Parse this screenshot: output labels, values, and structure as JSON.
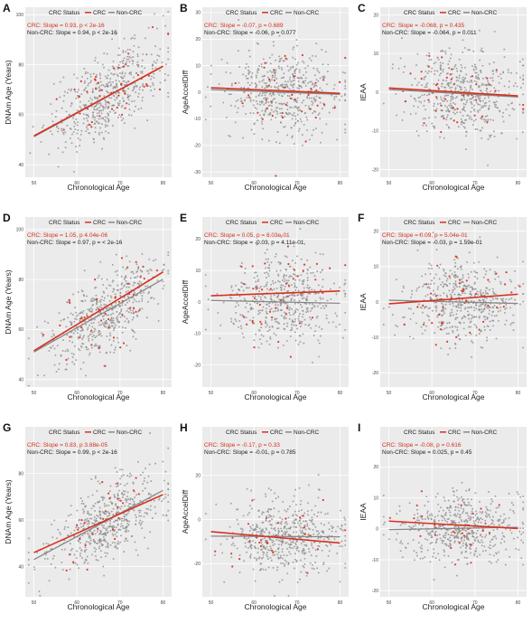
{
  "figure": {
    "colors": {
      "crc": "#d7301f",
      "noncrc": "#888888",
      "panel_bg": "#ebebeb",
      "grid": "#ffffff",
      "text": "#222222",
      "tick": "#444444"
    }
  },
  "chart_data": [
    {
      "panel": "A",
      "type": "scatter",
      "xlabel": "Chronological Age",
      "ylabel": "DNAm Age (Years)",
      "xlim": [
        48,
        82
      ],
      "ylim": [
        35,
        103
      ],
      "xticks": [
        50,
        60,
        70,
        80
      ],
      "yticks": [
        40,
        60,
        80,
        100
      ],
      "legend_title": "CRC Status",
      "legend_items": [
        "CRC",
        "Non-CRC"
      ],
      "annotations": {
        "crc": "CRC: Slope = 0.93, p < 2e-16",
        "noncrc": "Non-CRC: Slope = 0.94, p < 2e-16"
      },
      "series": [
        {
          "name": "CRC",
          "fit": {
            "slope": 0.93,
            "intercept": 5.0
          }
        },
        {
          "name": "Non-CRC",
          "fit": {
            "slope": 0.94,
            "intercept": 4.2
          }
        }
      ],
      "scatter": {
        "center_x": 67,
        "sd_x": 6.5,
        "y_at_center": 68.5,
        "slope": 0.94,
        "sd_y": 8.0,
        "n_noncrc": 520,
        "n_crc": 45
      }
    },
    {
      "panel": "B",
      "type": "scatter",
      "xlabel": "Chronological Age",
      "ylabel": "AgeAccelDiff",
      "xlim": [
        48,
        82
      ],
      "ylim": [
        -32,
        32
      ],
      "xticks": [
        50,
        60,
        70,
        80
      ],
      "yticks": [
        -30,
        -20,
        -10,
        0,
        10,
        20,
        30
      ],
      "legend_title": "CRC Status",
      "legend_items": [
        "CRC",
        "Non-CRC"
      ],
      "annotations": {
        "crc": "CRC: Slope = -0.07, p = 0.689",
        "noncrc": "Non-CRC: Slope = -0.06, p = 0.077"
      },
      "series": [
        {
          "name": "CRC",
          "fit": {
            "slope": -0.07,
            "intercept": 5.2
          }
        },
        {
          "name": "Non-CRC",
          "fit": {
            "slope": -0.06,
            "intercept": 4.0
          }
        }
      ],
      "scatter": {
        "center_x": 67,
        "sd_x": 6.5,
        "y_at_center": 0,
        "slope": -0.06,
        "sd_y": 8.0,
        "n_noncrc": 520,
        "n_crc": 45
      }
    },
    {
      "panel": "C",
      "type": "scatter",
      "xlabel": "Chronological Age",
      "ylabel": "IEAA",
      "xlim": [
        48,
        82
      ],
      "ylim": [
        -22,
        22
      ],
      "xticks": [
        50,
        60,
        70,
        80
      ],
      "yticks": [
        -20,
        -10,
        0,
        10,
        20
      ],
      "legend_title": "CRC Status",
      "legend_items": [
        "CRC",
        "Non-CRC"
      ],
      "annotations": {
        "crc": "CRC: Slope = -0.068, p = 0.435",
        "noncrc": "Non-CRC: Slope = -0.064, p = 0.011"
      },
      "series": [
        {
          "name": "CRC",
          "fit": {
            "slope": -0.068,
            "intercept": 4.5
          }
        },
        {
          "name": "Non-CRC",
          "fit": {
            "slope": -0.064,
            "intercept": 3.9
          }
        }
      ],
      "scatter": {
        "center_x": 67,
        "sd_x": 6.5,
        "y_at_center": 0,
        "slope": -0.064,
        "sd_y": 5.5,
        "n_noncrc": 520,
        "n_crc": 45
      }
    },
    {
      "panel": "D",
      "type": "scatter",
      "xlabel": "Chronological Age",
      "ylabel": "DNAm Age (Years)",
      "xlim": [
        48,
        82
      ],
      "ylim": [
        37,
        105
      ],
      "xticks": [
        50,
        60,
        70,
        80
      ],
      "yticks": [
        40,
        60,
        80,
        100
      ],
      "legend_title": "CRC Status",
      "legend_items": [
        "CRC",
        "Non-CRC"
      ],
      "annotations": {
        "crc": "CRC: Slope = 1.05, p 4.04e-06",
        "noncrc": "Non-CRC: Slope = 0.97, p = < 2e-16"
      },
      "series": [
        {
          "name": "CRC",
          "fit": {
            "slope": 1.05,
            "intercept": -1.0
          }
        },
        {
          "name": "Non-CRC",
          "fit": {
            "slope": 0.97,
            "intercept": 2.5
          }
        }
      ],
      "scatter": {
        "center_x": 67,
        "sd_x": 6.5,
        "y_at_center": 67.5,
        "slope": 0.97,
        "sd_y": 8.0,
        "n_noncrc": 520,
        "n_crc": 45
      }
    },
    {
      "panel": "E",
      "type": "scatter",
      "xlabel": "Chronological Age",
      "ylabel": "AgeAccelDiff",
      "xlim": [
        48,
        82
      ],
      "ylim": [
        -27,
        27
      ],
      "xticks": [
        50,
        60,
        70,
        80
      ],
      "yticks": [
        -20,
        -10,
        0,
        10,
        20
      ],
      "legend_title": "CRC Status",
      "legend_items": [
        "CRC",
        "Non-CRC"
      ],
      "annotations": {
        "crc": "CRC: Slope = 0.05, p = 8.03e-01",
        "noncrc": "Non-CRC: Slope = -0.03, p = 4.11e-01,"
      },
      "series": [
        {
          "name": "CRC",
          "fit": {
            "slope": 0.05,
            "intercept": -0.5
          }
        },
        {
          "name": "Non-CRC",
          "fit": {
            "slope": -0.03,
            "intercept": 2.0
          }
        }
      ],
      "scatter": {
        "center_x": 67,
        "sd_x": 6.5,
        "y_at_center": 0.5,
        "slope": -0.03,
        "sd_y": 7.0,
        "n_noncrc": 520,
        "n_crc": 45
      }
    },
    {
      "panel": "F",
      "type": "scatter",
      "xlabel": "Chronological Age",
      "ylabel": "IEAA",
      "xlim": [
        48,
        82
      ],
      "ylim": [
        -24,
        24
      ],
      "xticks": [
        50,
        60,
        70,
        80
      ],
      "yticks": [
        -20,
        -10,
        0,
        10,
        20
      ],
      "legend_title": "CRC Status",
      "legend_items": [
        "CRC",
        "Non-CRC"
      ],
      "annotations": {
        "crc": "CRC: Slope = 0.09, p = 5.04e-01",
        "noncrc": "Non-CRC: Slope = -0.03, p = 1.59e-01"
      },
      "series": [
        {
          "name": "CRC",
          "fit": {
            "slope": 0.09,
            "intercept": -5.0
          }
        },
        {
          "name": "Non-CRC",
          "fit": {
            "slope": -0.03,
            "intercept": 2.0
          }
        }
      ],
      "scatter": {
        "center_x": 67,
        "sd_x": 6.5,
        "y_at_center": 0,
        "slope": -0.03,
        "sd_y": 5.5,
        "n_noncrc": 520,
        "n_crc": 45
      }
    },
    {
      "panel": "G",
      "type": "scatter",
      "xlabel": "Chronological Age",
      "ylabel": "DNAm Age (Years)",
      "xlim": [
        48,
        82
      ],
      "ylim": [
        27,
        100
      ],
      "xticks": [
        50,
        60,
        70,
        80
      ],
      "yticks": [
        40,
        60,
        80
      ],
      "legend_title": "CRC Status",
      "legend_items": [
        "CRC",
        "Non-CRC"
      ],
      "annotations": {
        "crc": "CRC: Slope = 0.83, p 3.88e-05",
        "noncrc": "Non-CRC: Slope = 0.99, p < 2e-16"
      },
      "series": [
        {
          "name": "CRC",
          "fit": {
            "slope": 0.83,
            "intercept": 4.5
          }
        },
        {
          "name": "Non-CRC",
          "fit": {
            "slope": 0.99,
            "intercept": -6.5
          }
        }
      ],
      "scatter": {
        "center_x": 67,
        "sd_x": 6.5,
        "y_at_center": 59.5,
        "slope": 0.99,
        "sd_y": 8.0,
        "n_noncrc": 560,
        "n_crc": 30
      }
    },
    {
      "panel": "H",
      "type": "scatter",
      "xlabel": "Chronological Age",
      "ylabel": "AgeAccelDiff",
      "xlim": [
        48,
        82
      ],
      "ylim": [
        -35,
        42
      ],
      "xticks": [
        50,
        60,
        70,
        80
      ],
      "yticks": [
        -20,
        0,
        20
      ],
      "legend_title": "CRC Status",
      "legend_items": [
        "CRC",
        "Non-CRC"
      ],
      "annotations": {
        "crc": "CRC: Slope = -0.17, p = 0.33",
        "noncrc": "Non-CRC: Slope = -0.01, p = 0.785"
      },
      "series": [
        {
          "name": "CRC",
          "fit": {
            "slope": -0.17,
            "intercept": 3.0
          }
        },
        {
          "name": "Non-CRC",
          "fit": {
            "slope": -0.01,
            "intercept": -7.0
          }
        }
      ],
      "scatter": {
        "center_x": 67,
        "sd_x": 6.5,
        "y_at_center": -8,
        "slope": -0.01,
        "sd_y": 8.0,
        "n_noncrc": 560,
        "n_crc": 30
      }
    },
    {
      "panel": "I",
      "type": "scatter",
      "xlabel": "Chronological Age",
      "ylabel": "IEAA",
      "xlim": [
        48,
        82
      ],
      "ylim": [
        -22,
        33
      ],
      "xticks": [
        50,
        60,
        70,
        80
      ],
      "yticks": [
        -20,
        -10,
        0,
        10,
        20
      ],
      "legend_title": "CRC Status",
      "legend_items": [
        "CRC",
        "Non-CRC"
      ],
      "annotations": {
        "crc": "CRC: Slope = -0.08, p = 0.616",
        "noncrc": "Non-CRC: Slope = 0.025, p = 0.45"
      },
      "series": [
        {
          "name": "CRC",
          "fit": {
            "slope": -0.08,
            "intercept": 6.5
          }
        },
        {
          "name": "Non-CRC",
          "fit": {
            "slope": 0.025,
            "intercept": -1.5
          }
        }
      ],
      "scatter": {
        "center_x": 67,
        "sd_x": 6.5,
        "y_at_center": 0,
        "slope": 0.025,
        "sd_y": 5.5,
        "n_noncrc": 560,
        "n_crc": 30
      }
    }
  ]
}
